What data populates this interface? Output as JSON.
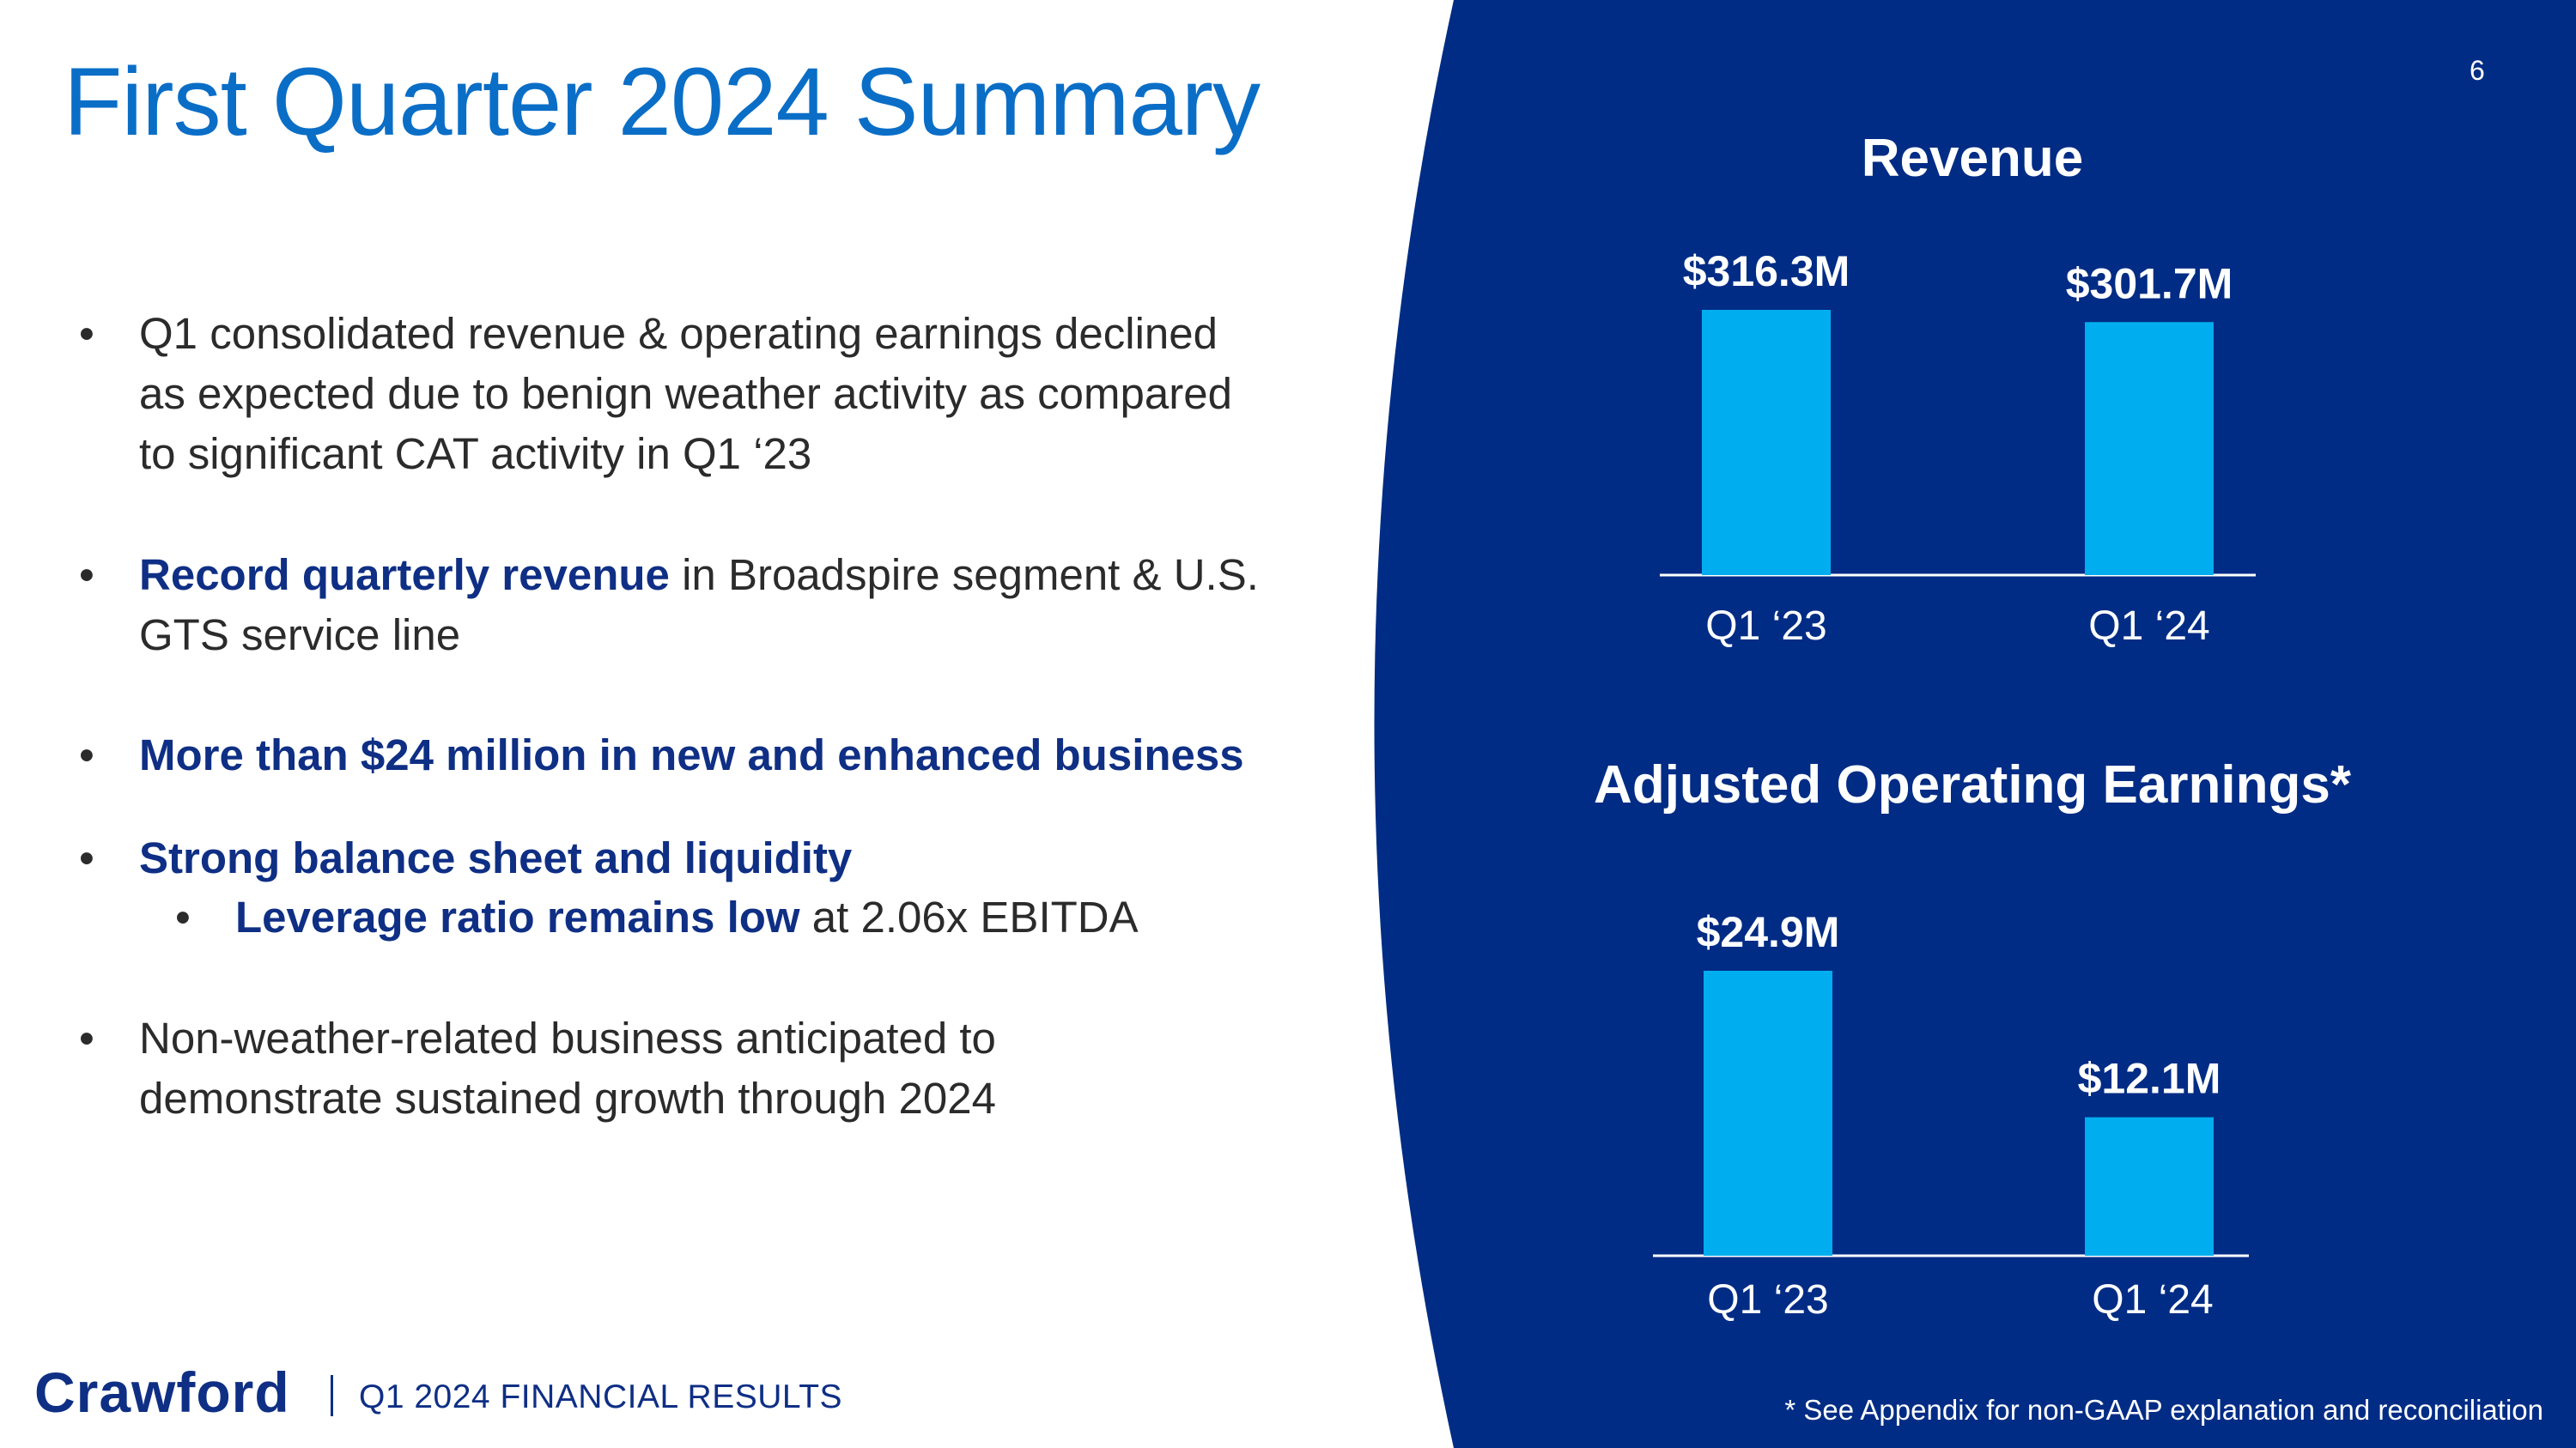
{
  "slide": {
    "title": "First Quarter 2024 Summary",
    "page_number": "6",
    "footer_logo": "Crawford",
    "footer_subtitle": "Q1 2024 FINANCIAL RESULTS",
    "footnote": "* See Appendix for non-GAAP explanation and reconciliation"
  },
  "bullets": {
    "b1_line1": "Q1 consolidated revenue & operating earnings declined",
    "b1_line2": "as expected due to benign weather activity as compared",
    "b1_line3": "to significant CAT activity in Q1 ‘23",
    "b2_bold": "Record quarterly revenue",
    "b2_rest": " in Broadspire segment & U.S.",
    "b2_line2": "GTS service line",
    "b3_bold": "More than $24 million in new and enhanced business",
    "b4_bold": "Strong balance sheet and liquidity",
    "b4_sub_bold": "Leverage ratio remains low",
    "b4_sub_rest": " at 2.06x EBITDA",
    "b5_line1": "Non-weather-related business anticipated to",
    "b5_line2": "demonstrate sustained growth through 2024",
    "bullet_symbol": "•"
  },
  "colors": {
    "title_blue": "#0a6ec7",
    "navy": "#002c85",
    "bar_blue": "#00aeef",
    "highlight_navy": "#0f2f85"
  },
  "chart_data": [
    {
      "type": "bar",
      "title": "Revenue",
      "categories": [
        "Q1 ‘23",
        "Q1 ‘24"
      ],
      "values": [
        316.3,
        301.7
      ],
      "labels": [
        "$316.3M",
        "$301.7M"
      ],
      "unit": "$M",
      "ylim": [
        0,
        316.3
      ]
    },
    {
      "type": "bar",
      "title": "Adjusted Operating Earnings*",
      "categories": [
        "Q1 ‘23",
        "Q1 ‘24"
      ],
      "values": [
        24.9,
        12.1
      ],
      "labels": [
        "$24.9M",
        "$12.1M"
      ],
      "unit": "$M",
      "ylim": [
        0,
        24.9
      ]
    }
  ]
}
